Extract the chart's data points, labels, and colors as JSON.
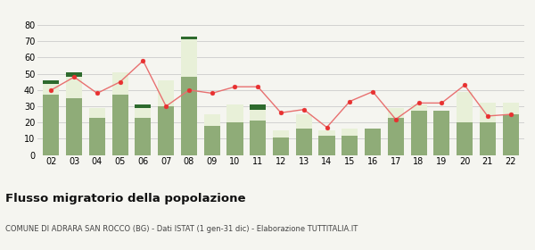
{
  "years": [
    "02",
    "03",
    "04",
    "05",
    "06",
    "07",
    "08",
    "09",
    "10",
    "11",
    "12",
    "13",
    "14",
    "15",
    "16",
    "17",
    "18",
    "19",
    "20",
    "21",
    "22"
  ],
  "iscritti_altri_comuni": [
    37,
    35,
    23,
    37,
    23,
    30,
    48,
    18,
    20,
    21,
    11,
    16,
    12,
    12,
    16,
    23,
    27,
    27,
    20,
    20,
    25
  ],
  "iscritti_estero": [
    7,
    13,
    6,
    14,
    6,
    16,
    23,
    7,
    11,
    7,
    4,
    9,
    3,
    4,
    0,
    6,
    4,
    0,
    19,
    12,
    7
  ],
  "iscritti_altri": [
    2,
    3,
    0,
    0,
    2,
    0,
    2,
    0,
    0,
    3,
    0,
    0,
    0,
    0,
    0,
    0,
    0,
    0,
    0,
    0,
    0
  ],
  "cancellati": [
    40,
    48,
    38,
    45,
    58,
    30,
    40,
    38,
    42,
    42,
    26,
    28,
    17,
    33,
    39,
    22,
    32,
    32,
    43,
    24,
    25
  ],
  "color_altri_comuni": "#8fac78",
  "color_estero": "#e8f0d8",
  "color_altri": "#2d6a2d",
  "color_cancellati": "#e83030",
  "color_cancellati_line": "#e87070",
  "ylim": [
    0,
    80
  ],
  "yticks": [
    0,
    10,
    20,
    30,
    40,
    50,
    60,
    70,
    80
  ],
  "title": "Flusso migratorio della popolazione",
  "subtitle": "COMUNE DI ADRARA SAN ROCCO (BG) - Dati ISTAT (1 gen-31 dic) - Elaborazione TUTTITALIA.IT",
  "background_color": "#f5f5f0",
  "grid_color": "#cccccc"
}
